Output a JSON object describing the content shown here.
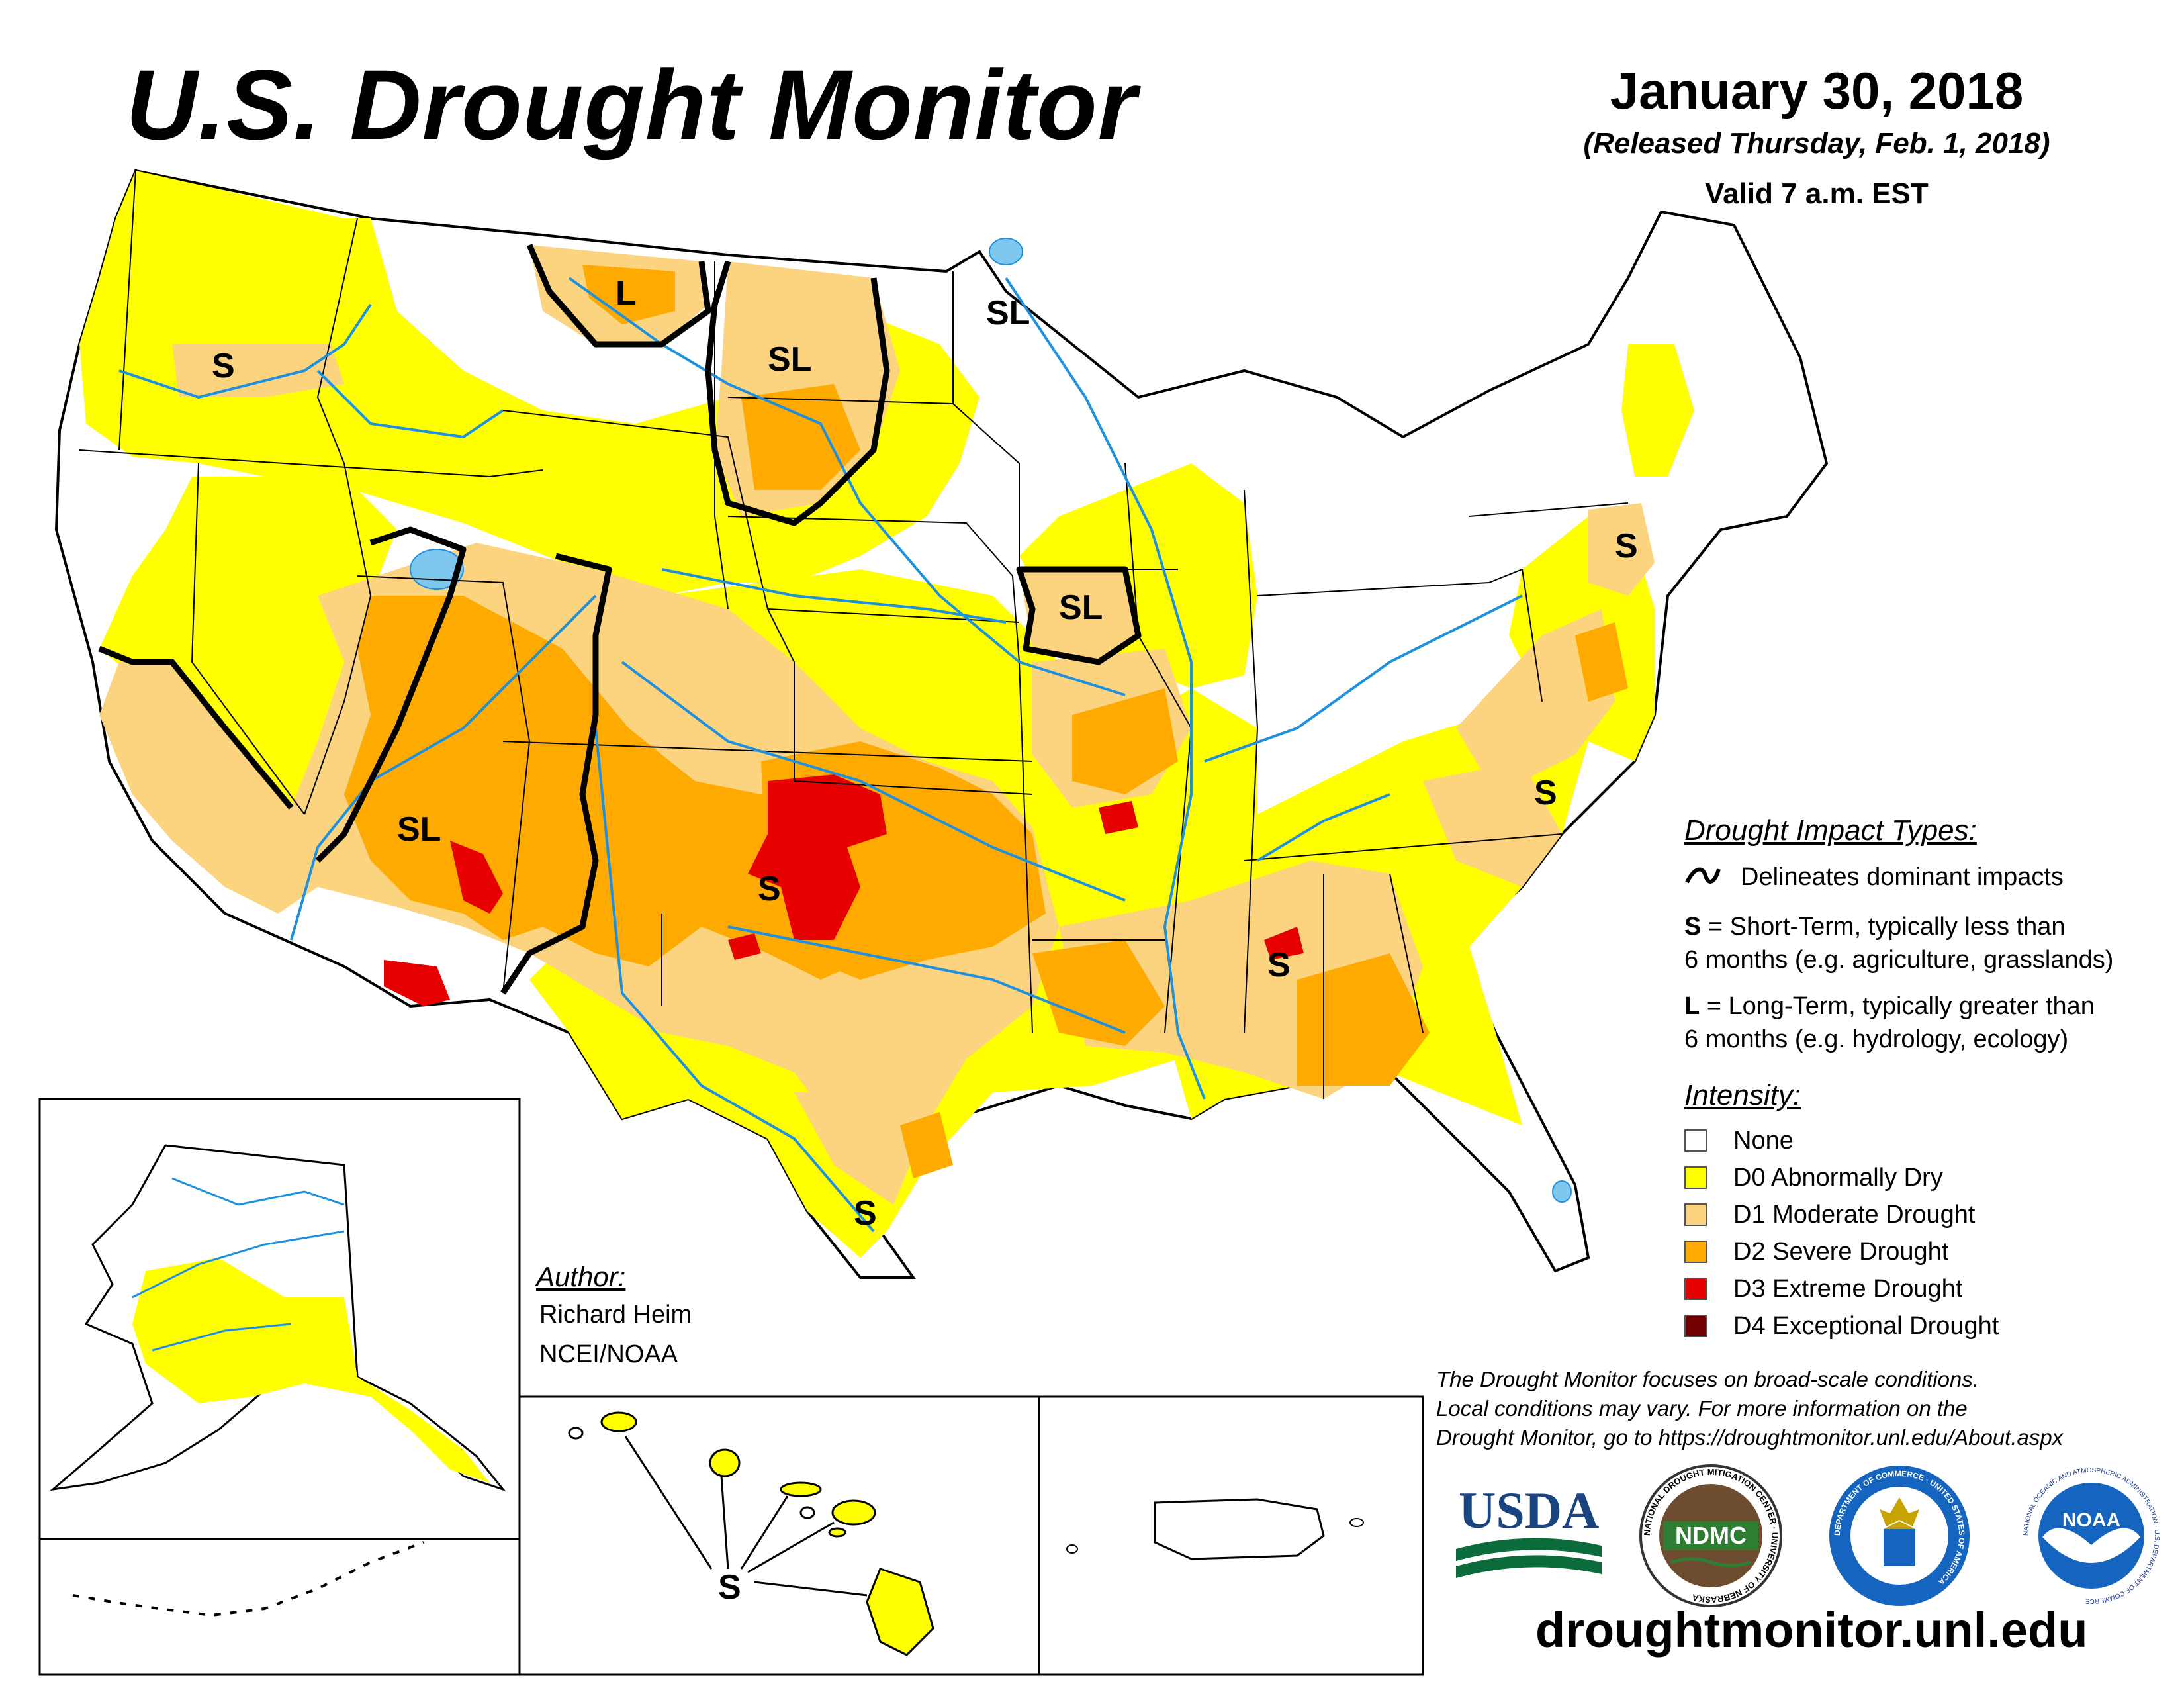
{
  "header": {
    "title": "U.S. Drought Monitor",
    "date": "January 30, 2018",
    "released": "(Released Thursday, Feb. 1, 2018)",
    "valid": "Valid 7 a.m. EST"
  },
  "impact_legend": {
    "heading": "Drought Impact Types:",
    "delineates": "Delineates dominant impacts",
    "short_term_key": "S",
    "short_term_line1": " = Short-Term, typically less than",
    "short_term_line2": "6 months (e.g. agriculture, grasslands)",
    "long_term_key": "L",
    "long_term_line1": " = Long-Term, typically greater than",
    "long_term_line2": "6 months (e.g. hydrology, ecology)"
  },
  "intensity_legend": {
    "heading": "Intensity:",
    "items": [
      {
        "label": "None",
        "color": "#ffffff"
      },
      {
        "label": "D0 Abnormally Dry",
        "color": "#ffff00"
      },
      {
        "label": "D1 Moderate Drought",
        "color": "#fcd37f"
      },
      {
        "label": "D2 Severe Drought",
        "color": "#ffaa00"
      },
      {
        "label": "D3 Extreme Drought",
        "color": "#e60000"
      },
      {
        "label": "D4 Exceptional Drought",
        "color": "#730000"
      }
    ]
  },
  "map_labels": {
    "oregon": "S",
    "montana": "L",
    "dakotas": "SL",
    "minnesota": "SL",
    "iowa": "SL",
    "southwest": "SL",
    "southern_plains": "S",
    "mississippi_alabama": "S",
    "carolinas": "S",
    "pennsylvania": "S",
    "south_texas": "S",
    "hawaii": "S"
  },
  "author": {
    "heading": "Author:",
    "name": "Richard Heim",
    "org": "NCEI/NOAA"
  },
  "note": {
    "line1": "The Drought Monitor focuses on broad-scale conditions.",
    "line2": "Local conditions may vary. For more information on the",
    "line3": "Drought Monitor, go to https://droughtmonitor.unl.edu/About.aspx"
  },
  "logos": {
    "usda": "USDA",
    "ndmc": "NDMC",
    "ndmc_ring": "NATIONAL DROUGHT MITIGATION CENTER · UNIVERSITY OF NEBRASKA",
    "commerce_ring": "DEPARTMENT OF COMMERCE · UNITED STATES OF AMERICA",
    "noaa": "NOAA",
    "noaa_ring": "NATIONAL OCEANIC AND ATMOSPHERIC ADMINISTRATION · U.S. DEPARTMENT OF COMMERCE"
  },
  "website": "droughtmonitor.unl.edu",
  "colors": {
    "d0": "#ffff00",
    "d1": "#fcd37f",
    "d2": "#ffaa00",
    "d3": "#e60000",
    "d4": "#730000",
    "water": "#7ec8f0",
    "river": "#1e90e0"
  }
}
